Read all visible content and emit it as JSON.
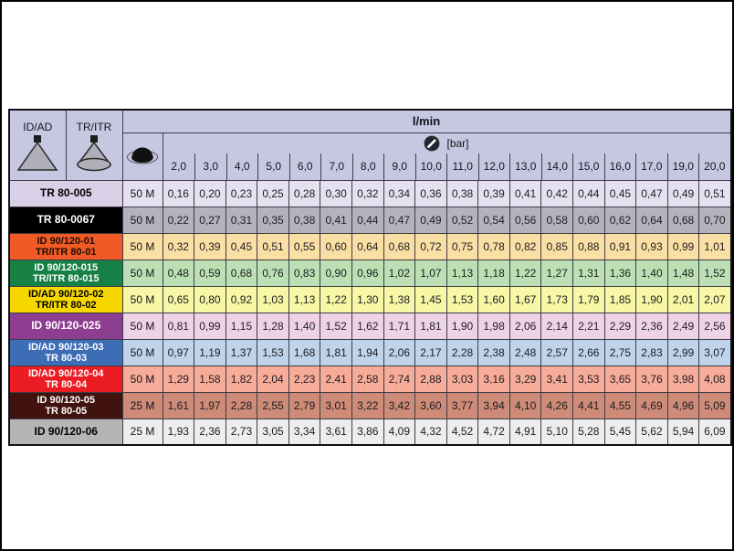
{
  "page": {
    "background": "#ffffff",
    "frame_color": "#000000"
  },
  "table": {
    "header": {
      "header_bg": "#c6c8e2",
      "col_idad_label": "ID/AD",
      "col_tritr_label": "TR/ITR",
      "flow_unit_label": "l/min",
      "pressure_unit_label": "[bar]",
      "icons": {
        "idad": "flat-fan-nozzle-icon",
        "tritr": "hollow-cone-nozzle-icon",
        "droplet": "spray-droplet-icon",
        "gauge": "pressure-gauge-icon"
      },
      "pressures": [
        "2,0",
        "3,0",
        "4,0",
        "5,0",
        "6,0",
        "7,0",
        "8,0",
        "9,0",
        "10,0",
        "11,0",
        "12,0",
        "13,0",
        "14,0",
        "15,0",
        "16,0",
        "17,0",
        "19,0",
        "20,0"
      ]
    },
    "rows": [
      {
        "label_lines": [
          "TR 80-005"
        ],
        "droplet_size": "50 M",
        "label_bg": "#d9d0e7",
        "label_fg": "#000000",
        "cell_bg": "#e6e1f0",
        "values": [
          "0,16",
          "0,20",
          "0,23",
          "0,25",
          "0,28",
          "0,30",
          "0,32",
          "0,34",
          "0,36",
          "0,38",
          "0,39",
          "0,41",
          "0,42",
          "0,44",
          "0,45",
          "0,47",
          "0,49",
          "0,51"
        ]
      },
      {
        "label_lines": [
          "TR 80-0067"
        ],
        "droplet_size": "50 M",
        "label_bg": "#000000",
        "label_fg": "#ffffff",
        "cell_bg": "#b3b3bd",
        "values": [
          "0,22",
          "0,27",
          "0,31",
          "0,35",
          "0,38",
          "0,41",
          "0,44",
          "0,47",
          "0,49",
          "0,52",
          "0,54",
          "0,56",
          "0,58",
          "0,60",
          "0,62",
          "0,64",
          "0,68",
          "0,70"
        ]
      },
      {
        "label_lines": [
          "ID 90/120-01",
          "TR/ITR 80-01"
        ],
        "droplet_size": "50 M",
        "label_bg": "#f15a25",
        "label_fg": "#1d0d02",
        "cell_bg": "#fadfa4",
        "values": [
          "0,32",
          "0,39",
          "0,45",
          "0,51",
          "0,55",
          "0,60",
          "0,64",
          "0,68",
          "0,72",
          "0,75",
          "0,78",
          "0,82",
          "0,85",
          "0,88",
          "0,91",
          "0,93",
          "0,99",
          "1,01"
        ]
      },
      {
        "label_lines": [
          "ID 90/120-015",
          "TR/ITR 80-015"
        ],
        "droplet_size": "50 M",
        "label_bg": "#168045",
        "label_fg": "#ffffff",
        "cell_bg": "#bce0b4",
        "values": [
          "0,48",
          "0,59",
          "0,68",
          "0,76",
          "0,83",
          "0,90",
          "0,96",
          "1,02",
          "1,07",
          "1,13",
          "1,18",
          "1,22",
          "1,27",
          "1,31",
          "1,36",
          "1,40",
          "1,48",
          "1,52"
        ]
      },
      {
        "label_lines": [
          "ID/AD 90/120-02",
          "TR/ITR 80-02"
        ],
        "droplet_size": "50 M",
        "label_bg": "#f6d800",
        "label_fg": "#000000",
        "cell_bg": "#f8f7a6",
        "values": [
          "0,65",
          "0,80",
          "0,92",
          "1,03",
          "1,13",
          "1,22",
          "1,30",
          "1,38",
          "1,45",
          "1,53",
          "1,60",
          "1,67",
          "1,73",
          "1,79",
          "1,85",
          "1,90",
          "2,01",
          "2,07"
        ]
      },
      {
        "label_lines": [
          "ID 90/120-025"
        ],
        "droplet_size": "50 M",
        "label_bg": "#8d3e91",
        "label_fg": "#ffffff",
        "cell_bg": "#eed3e7",
        "values": [
          "0,81",
          "0,99",
          "1,15",
          "1,28",
          "1,40",
          "1,52",
          "1,62",
          "1,71",
          "1,81",
          "1,90",
          "1,98",
          "2,06",
          "2,14",
          "2,21",
          "2,29",
          "2,36",
          "2,49",
          "2,56"
        ]
      },
      {
        "label_lines": [
          "ID/AD 90/120-03",
          "TR 80-03"
        ],
        "droplet_size": "50 M",
        "label_bg": "#3d6db5",
        "label_fg": "#ffffff",
        "cell_bg": "#bfd4eb",
        "values": [
          "0,97",
          "1,19",
          "1,37",
          "1,53",
          "1,68",
          "1,81",
          "1,94",
          "2,06",
          "2,17",
          "2,28",
          "2,38",
          "2,48",
          "2,57",
          "2,66",
          "2,75",
          "2,83",
          "2,99",
          "3,07"
        ]
      },
      {
        "label_lines": [
          "ID/AD 90/120-04",
          "TR 80-04"
        ],
        "droplet_size": "50 M",
        "label_bg": "#ec1c24",
        "label_fg": "#ffffff",
        "cell_bg": "#f7ab99",
        "values": [
          "1,29",
          "1,58",
          "1,82",
          "2,04",
          "2,23",
          "2,41",
          "2,58",
          "2,74",
          "2,88",
          "3,03",
          "3,16",
          "3,29",
          "3,41",
          "3,53",
          "3,65",
          "3,76",
          "3,98",
          "4,08"
        ]
      },
      {
        "label_lines": [
          "ID 90/120-05",
          "TR 80-05"
        ],
        "droplet_size": "25 M",
        "label_bg": "#40130e",
        "label_fg": "#ffffff",
        "cell_bg": "#cd8b78",
        "values": [
          "1,61",
          "1,97",
          "2,28",
          "2,55",
          "2,79",
          "3,01",
          "3,22",
          "3,42",
          "3,60",
          "3,77",
          "3,94",
          "4,10",
          "4,26",
          "4,41",
          "4,55",
          "4,69",
          "4,96",
          "5,09"
        ]
      },
      {
        "label_lines": [
          "ID 90/120-06"
        ],
        "droplet_size": "25 M",
        "label_bg": "#b5b5b5",
        "label_fg": "#000000",
        "cell_bg": "#ededed",
        "values": [
          "1,93",
          "2,36",
          "2,73",
          "3,05",
          "3,34",
          "3,61",
          "3,86",
          "4,09",
          "4,32",
          "4,52",
          "4,72",
          "4,91",
          "5,10",
          "5,28",
          "5,45",
          "5,62",
          "5,94",
          "6,09"
        ]
      }
    ]
  }
}
